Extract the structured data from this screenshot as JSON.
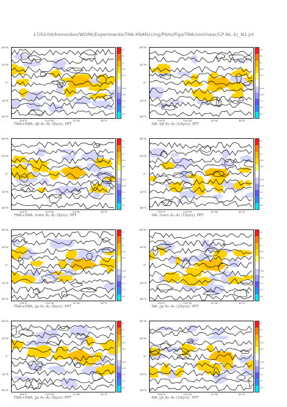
{
  "header": "17/02/04/home/dan/WORK/Experiments/TNA-XNAforcing/Plots/Figs/TNA/nonlinear/CP-NL-3c_N2.jnl",
  "lat_labels": [
    "80°N",
    "40°N",
    "0°",
    "40°S",
    "80°S"
  ],
  "lon_labels": [
    "150°E",
    "110°W",
    "10°W",
    "90°E"
  ],
  "colorbar": {
    "colors": [
      "#ff1a1a",
      "#ff7a00",
      "#ffb400",
      "#ffd800",
      "#ffff66",
      "#ffffff",
      "#ccccff",
      "#9999ff",
      "#5a5aff",
      "#2b8cff",
      "#00e5ff"
    ],
    "labels": [
      "0.5",
      "0.2",
      "0.1",
      "0.05",
      "0.02",
      "",
      "-0.02",
      "-0.05",
      "-0.1",
      "-0.2",
      "-0.5"
    ]
  },
  "panels": [
    {
      "caption": "TNA+XNA: djf A₁–A₀ (9yrs): PPT"
    },
    {
      "caption": "NA: djf A₁–A₀ (19yrs): PPT"
    },
    {
      "caption": "TNA+XNA: mam A₁–A₀ (9yrs): PPT"
    },
    {
      "caption": "NA: mam A₁–A₀ (19yrs): PPT"
    },
    {
      "caption": "TNA+XNA: jja A₁–A₀ (9yrs): PPT"
    },
    {
      "caption": "NA: jja A₁–A₀ (19yrs): PPT"
    },
    {
      "caption": "TNA+XNA: jja A₁–A₀ (9yrs): PPT"
    },
    {
      "caption": "NA: jja A₁–A₀ (19yrs): PPT"
    }
  ]
}
